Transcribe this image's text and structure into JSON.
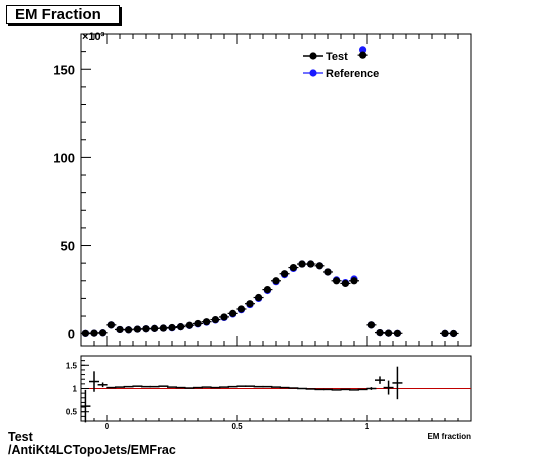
{
  "title": "EM Fraction",
  "footer": {
    "line1": "Test",
    "line2": "/AntiKt4LCTopoJets/EMFrac"
  },
  "colors": {
    "test": "#000000",
    "reference": "#1a1aff",
    "ratio_line": "#c00000"
  },
  "chart_data": [
    {
      "type": "scatter",
      "title": "EM Fraction",
      "xlabel": "",
      "ylabel": "",
      "y_multiplier": "×10³",
      "xlim": [
        -0.1,
        1.4
      ],
      "ylim": [
        -7,
        170
      ],
      "yticks": [
        0,
        50,
        100,
        150
      ],
      "legend": [
        "Test",
        "Reference"
      ],
      "legend_position": "top-right",
      "series": [
        {
          "name": "Test",
          "points": [
            [
              -0.083,
              0.2
            ],
            [
              -0.05,
              0.3
            ],
            [
              -0.017,
              0.5
            ],
            [
              0.0167,
              5.0
            ],
            [
              0.05,
              2.4
            ],
            [
              0.083,
              2.2
            ],
            [
              0.117,
              2.6
            ],
            [
              0.15,
              2.8
            ],
            [
              0.183,
              3.0
            ],
            [
              0.217,
              3.2
            ],
            [
              0.25,
              3.5
            ],
            [
              0.283,
              4.0
            ],
            [
              0.317,
              4.8
            ],
            [
              0.35,
              5.8
            ],
            [
              0.383,
              6.8
            ],
            [
              0.417,
              8.0
            ],
            [
              0.45,
              9.5
            ],
            [
              0.483,
              11.5
            ],
            [
              0.517,
              14.0
            ],
            [
              0.55,
              17.0
            ],
            [
              0.583,
              20.5
            ],
            [
              0.617,
              25.0
            ],
            [
              0.65,
              30.0
            ],
            [
              0.683,
              34.0
            ],
            [
              0.717,
              37.5
            ],
            [
              0.75,
              39.5
            ],
            [
              0.783,
              39.5
            ],
            [
              0.817,
              38.5
            ],
            [
              0.85,
              35.0
            ],
            [
              0.883,
              30.0
            ],
            [
              0.917,
              28.5
            ],
            [
              0.95,
              30.0
            ],
            [
              0.983,
              158.0
            ],
            [
              1.017,
              5.0
            ],
            [
              1.05,
              0.6
            ],
            [
              1.083,
              0.3
            ],
            [
              1.117,
              0.2
            ],
            [
              1.3,
              0.15
            ],
            [
              1.333,
              0.1
            ]
          ]
        },
        {
          "name": "Reference",
          "points": [
            [
              -0.083,
              0.2
            ],
            [
              -0.05,
              0.3
            ],
            [
              -0.017,
              0.5
            ],
            [
              0.0167,
              5.0
            ],
            [
              0.05,
              2.4
            ],
            [
              0.083,
              2.2
            ],
            [
              0.117,
              2.6
            ],
            [
              0.15,
              2.8
            ],
            [
              0.183,
              3.0
            ],
            [
              0.217,
              3.2
            ],
            [
              0.25,
              3.4
            ],
            [
              0.283,
              4.0
            ],
            [
              0.317,
              4.7
            ],
            [
              0.35,
              5.6
            ],
            [
              0.383,
              6.6
            ],
            [
              0.417,
              7.8
            ],
            [
              0.45,
              9.2
            ],
            [
              0.483,
              11.2
            ],
            [
              0.517,
              13.6
            ],
            [
              0.55,
              16.5
            ],
            [
              0.583,
              20.0
            ],
            [
              0.617,
              24.5
            ],
            [
              0.65,
              29.5
            ],
            [
              0.683,
              33.5
            ],
            [
              0.717,
              37.0
            ],
            [
              0.75,
              39.5
            ],
            [
              0.783,
              39.5
            ],
            [
              0.817,
              38.5
            ],
            [
              0.85,
              35.0
            ],
            [
              0.883,
              30.5
            ],
            [
              0.917,
              29.0
            ],
            [
              0.95,
              31.0
            ],
            [
              0.983,
              161.0
            ],
            [
              1.017,
              5.0
            ],
            [
              1.05,
              0.6
            ],
            [
              1.083,
              0.3
            ],
            [
              1.117,
              0.2
            ],
            [
              1.3,
              0.15
            ],
            [
              1.333,
              0.1
            ]
          ]
        }
      ]
    },
    {
      "type": "scatter",
      "xlabel": "EM fraction",
      "ylabel": "",
      "xlim": [
        -0.1,
        1.4
      ],
      "ylim": [
        0.3,
        1.7
      ],
      "xticks": [
        0,
        0.5,
        1
      ],
      "yticks": [
        0.5,
        1,
        1.5
      ],
      "reference_line": 1.0,
      "series": [
        {
          "name": "Ratio",
          "points": [
            [
              -0.083,
              0.62
            ],
            [
              -0.05,
              1.15
            ],
            [
              -0.017,
              1.08
            ],
            [
              0.0167,
              1.02
            ],
            [
              0.05,
              1.03
            ],
            [
              0.083,
              1.04
            ],
            [
              0.117,
              1.05
            ],
            [
              0.15,
              1.04
            ],
            [
              0.183,
              1.04
            ],
            [
              0.217,
              1.05
            ],
            [
              0.25,
              1.03
            ],
            [
              0.283,
              1.02
            ],
            [
              0.317,
              1.01
            ],
            [
              0.35,
              1.02
            ],
            [
              0.383,
              1.03
            ],
            [
              0.417,
              1.02
            ],
            [
              0.45,
              1.03
            ],
            [
              0.483,
              1.04
            ],
            [
              0.517,
              1.05
            ],
            [
              0.55,
              1.05
            ],
            [
              0.583,
              1.04
            ],
            [
              0.617,
              1.04
            ],
            [
              0.65,
              1.03
            ],
            [
              0.683,
              1.02
            ],
            [
              0.717,
              1.01
            ],
            [
              0.75,
              1.0
            ],
            [
              0.783,
              0.99
            ],
            [
              0.817,
              0.98
            ],
            [
              0.85,
              0.98
            ],
            [
              0.883,
              0.97
            ],
            [
              0.917,
              0.98
            ],
            [
              0.95,
              0.97
            ],
            [
              0.983,
              0.98
            ],
            [
              1.017,
              1.0
            ],
            [
              1.05,
              1.18
            ],
            [
              1.083,
              1.02
            ],
            [
              1.117,
              1.12
            ]
          ],
          "errors": [
            0.35,
            0.22,
            0.05,
            0.01,
            0.01,
            0.01,
            0.01,
            0.01,
            0.01,
            0.01,
            0.01,
            0.01,
            0.01,
            0.01,
            0.01,
            0.01,
            0.01,
            0.01,
            0.01,
            0.01,
            0.01,
            0.01,
            0.01,
            0.01,
            0.01,
            0.01,
            0.01,
            0.01,
            0.01,
            0.01,
            0.01,
            0.01,
            0.01,
            0.03,
            0.08,
            0.15,
            0.35
          ]
        }
      ]
    }
  ]
}
